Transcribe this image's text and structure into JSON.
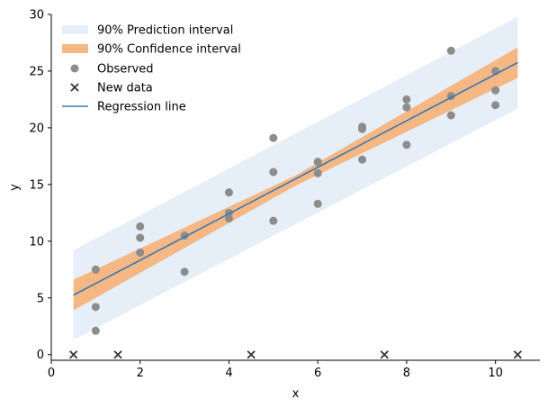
{
  "chart_data": {
    "type": "scatter",
    "title": "",
    "xlabel": "x",
    "ylabel": "y",
    "xlim": [
      0,
      11
    ],
    "ylim": [
      -0.5,
      30
    ],
    "xticks": [
      0,
      2,
      4,
      6,
      8,
      10
    ],
    "yticks": [
      0,
      5,
      10,
      15,
      20,
      25,
      30
    ],
    "grid": false,
    "legend_position": "top-left",
    "colors": {
      "prediction": "#e6eef7",
      "confidence": "#f5b885",
      "observed": "#8c8c8c",
      "new_data": "#333333",
      "line": "#3a78b0"
    },
    "legend": {
      "prediction": "90% Prediction interval",
      "confidence": "90% Confidence interval",
      "observed": "Observed",
      "new_data": "New data",
      "line": "Regression line"
    },
    "regression_line": {
      "x": [
        0.5,
        10.5
      ],
      "y": [
        5.25,
        25.75
      ]
    },
    "confidence_band": {
      "x": [
        0.5,
        5.5,
        10.5
      ],
      "lower": [
        3.9,
        14.9,
        24.4
      ],
      "upper": [
        6.6,
        15.8,
        27.1
      ]
    },
    "prediction_band": {
      "x": [
        0.5,
        10.5
      ],
      "lower": [
        1.3,
        21.7
      ],
      "upper": [
        9.2,
        29.8
      ]
    },
    "observed": {
      "x": [
        1,
        1,
        1,
        2,
        2,
        2,
        3,
        3,
        4,
        4,
        4,
        5,
        5,
        5,
        6,
        6,
        6,
        7,
        7,
        7,
        8,
        8,
        8,
        9,
        9,
        9,
        10,
        10,
        10
      ],
      "y": [
        7.5,
        4.2,
        2.1,
        11.3,
        10.3,
        9.0,
        10.5,
        7.3,
        14.3,
        12.5,
        12.0,
        19.1,
        16.1,
        11.8,
        17.0,
        16.0,
        13.3,
        20.1,
        19.9,
        17.2,
        22.5,
        21.8,
        18.5,
        26.8,
        22.8,
        21.1,
        25.0,
        23.3,
        22.0
      ]
    },
    "new_data": {
      "x": [
        0.5,
        1.5,
        4.5,
        7.5,
        10.5
      ],
      "y": [
        0,
        0,
        0,
        0,
        0
      ]
    }
  }
}
